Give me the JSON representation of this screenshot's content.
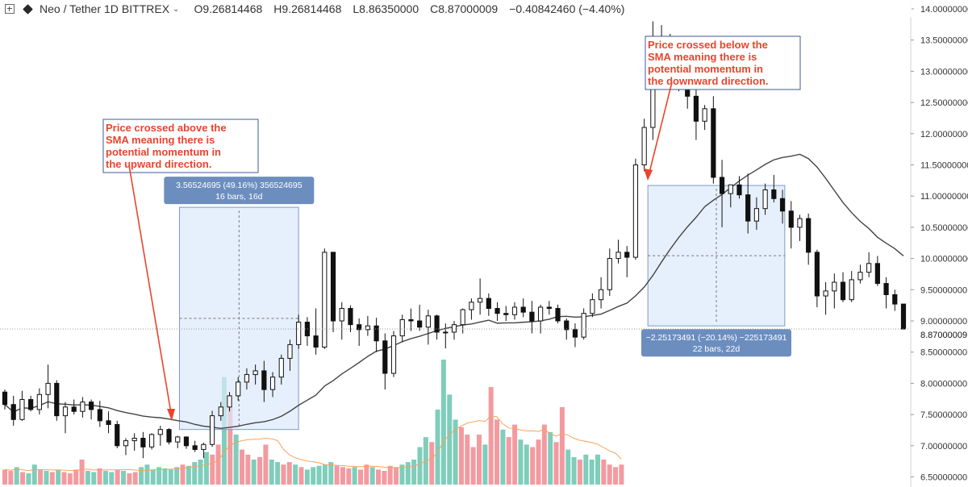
{
  "header": {
    "symbol": "Neo / Tether",
    "interval": "1D",
    "exchange": "BITTREX",
    "open": "O9.26814468",
    "high": "H9.26814468",
    "low": "L8.86350000",
    "close": "C8.87000009",
    "change": "−0.40842460 (−4.40%)"
  },
  "annotations": {
    "up_note": [
      "Price crossed above the",
      "SMA meaning there is",
      "potential momentum in",
      "the upward direction."
    ],
    "down_note": [
      "Price crossed below the",
      "SMA meaning there is",
      "potential momentum in",
      "the downward direction."
    ]
  },
  "measures": {
    "up": {
      "line1": "3.56524695 (49.16%) 356524695",
      "line2": "16 bars, 16d",
      "from": 7.26,
      "to": 10.82
    },
    "down": {
      "line1": "−2.25173491 (−20.14%) −225173491",
      "line2": "22 bars, 22d",
      "from": 11.17,
      "to": 8.92
    }
  },
  "price_label": "8.87000009",
  "colors": {
    "up": "#ffffff",
    "down": "#111111",
    "sma": "#444444",
    "vol_up": "#7fcdbb",
    "vol_down": "#f39aa0",
    "vol_ma": "#f7a35c",
    "measure_fill": "#dbeafb",
    "measure_stroke": "#2962ff",
    "note_text": "#e8452c",
    "note_border": "#3c5a99",
    "label_bg": "#6c8ebf"
  },
  "chart_data": {
    "type": "candlestick",
    "title": "",
    "ylim": [
      6.45,
      14.1
    ],
    "y_ticks": [
      "14.00000000",
      "13.50000000",
      "13.00000000",
      "12.50000000",
      "12.00000000",
      "11.50000000",
      "11.00000000",
      "10.50000000",
      "10.00000000",
      "9.50000000",
      "9.00000000",
      "8.50000000",
      "8.00000000",
      "7.50000000",
      "7.00000000",
      "6.50000000"
    ],
    "ohlc": [
      [
        7.86,
        7.9,
        7.58,
        7.66
      ],
      [
        7.66,
        7.8,
        7.32,
        7.42
      ],
      [
        7.42,
        7.88,
        7.4,
        7.74
      ],
      [
        7.74,
        7.8,
        7.55,
        7.58
      ],
      [
        7.58,
        7.92,
        7.5,
        7.82
      ],
      [
        7.82,
        8.3,
        7.6,
        8.0
      ],
      [
        8.0,
        8.05,
        7.4,
        7.48
      ],
      [
        7.48,
        7.7,
        7.2,
        7.62
      ],
      [
        7.62,
        7.74,
        7.5,
        7.55
      ],
      [
        7.55,
        7.78,
        7.45,
        7.7
      ],
      [
        7.7,
        7.74,
        7.42,
        7.58
      ],
      [
        7.58,
        7.72,
        7.3,
        7.4
      ],
      [
        7.4,
        7.55,
        7.2,
        7.34
      ],
      [
        7.34,
        7.4,
        6.96,
        7.0
      ],
      [
        7.0,
        7.12,
        6.85,
        7.08
      ],
      [
        7.08,
        7.2,
        6.92,
        7.12
      ],
      [
        7.12,
        7.22,
        6.8,
        6.98
      ],
      [
        6.98,
        7.2,
        6.94,
        7.18
      ],
      [
        7.18,
        7.32,
        7.0,
        7.26
      ],
      [
        7.26,
        7.28,
        7.02,
        7.06
      ],
      [
        7.06,
        7.16,
        6.96,
        7.14
      ],
      [
        7.14,
        7.15,
        6.95,
        7.0
      ],
      [
        7.0,
        7.08,
        6.9,
        6.94
      ],
      [
        6.94,
        7.05,
        6.8,
        7.02
      ],
      [
        7.02,
        7.56,
        6.98,
        7.48
      ],
      [
        7.48,
        7.7,
        7.4,
        7.62
      ],
      [
        7.62,
        7.86,
        7.55,
        7.8
      ],
      [
        7.8,
        8.1,
        7.72,
        8.02
      ],
      [
        8.02,
        8.24,
        7.9,
        8.14
      ],
      [
        8.14,
        8.3,
        7.98,
        8.2
      ],
      [
        8.2,
        8.36,
        7.7,
        7.9
      ],
      [
        7.9,
        8.18,
        7.78,
        8.1
      ],
      [
        8.1,
        8.46,
        7.98,
        8.4
      ],
      [
        8.4,
        8.7,
        8.2,
        8.62
      ],
      [
        8.62,
        9.1,
        8.55,
        8.98
      ],
      [
        8.98,
        9.06,
        8.6,
        8.76
      ],
      [
        8.76,
        9.2,
        8.46,
        8.58
      ],
      [
        8.58,
        10.16,
        8.55,
        10.1
      ],
      [
        10.1,
        10.1,
        8.82,
        9.0
      ],
      [
        9.0,
        9.3,
        8.7,
        9.2
      ],
      [
        9.2,
        9.25,
        8.82,
        8.94
      ],
      [
        8.94,
        9.04,
        8.6,
        8.86
      ],
      [
        8.86,
        9.08,
        8.76,
        8.92
      ],
      [
        8.92,
        9.05,
        8.5,
        8.68
      ],
      [
        8.68,
        8.8,
        7.9,
        8.16
      ],
      [
        8.16,
        8.84,
        8.1,
        8.76
      ],
      [
        8.76,
        9.1,
        8.66,
        9.02
      ],
      [
        9.02,
        9.2,
        8.84,
        9.0
      ],
      [
        9.0,
        9.26,
        8.84,
        8.9
      ],
      [
        8.9,
        9.18,
        8.62,
        9.08
      ],
      [
        9.08,
        9.1,
        8.7,
        8.82
      ],
      [
        8.82,
        8.96,
        8.56,
        8.82
      ],
      [
        8.82,
        9.0,
        8.7,
        8.94
      ],
      [
        8.94,
        9.2,
        8.8,
        9.18
      ],
      [
        9.18,
        9.36,
        9.02,
        9.3
      ],
      [
        9.3,
        9.68,
        9.1,
        9.36
      ],
      [
        9.36,
        9.44,
        9.08,
        9.2
      ],
      [
        9.2,
        9.3,
        9.0,
        9.12
      ],
      [
        9.12,
        9.24,
        9.0,
        9.1
      ],
      [
        9.1,
        9.3,
        9.02,
        9.22
      ],
      [
        9.22,
        9.36,
        9.06,
        9.14
      ],
      [
        9.14,
        9.32,
        8.8,
        9.0
      ],
      [
        9.0,
        9.26,
        8.8,
        9.22
      ],
      [
        9.22,
        9.32,
        9.1,
        9.2
      ],
      [
        9.2,
        9.26,
        8.96,
        9.0
      ],
      [
        9.0,
        9.04,
        8.7,
        8.86
      ],
      [
        8.86,
        8.96,
        8.58,
        8.74
      ],
      [
        8.74,
        9.2,
        8.7,
        9.12
      ],
      [
        9.12,
        9.44,
        9.06,
        9.34
      ],
      [
        9.34,
        9.7,
        9.2,
        9.5
      ],
      [
        9.5,
        10.16,
        9.4,
        10.0
      ],
      [
        10.0,
        10.3,
        9.92,
        10.1
      ],
      [
        10.1,
        10.2,
        9.7,
        10.02
      ],
      [
        10.02,
        11.6,
        9.98,
        11.5
      ],
      [
        11.5,
        12.24,
        11.4,
        12.1
      ],
      [
        12.1,
        13.8,
        11.9,
        13.1
      ],
      [
        13.1,
        13.74,
        12.9,
        13.5
      ],
      [
        13.5,
        13.6,
        12.8,
        13.2
      ],
      [
        13.2,
        13.42,
        12.68,
        12.9
      ],
      [
        12.9,
        12.96,
        12.4,
        12.6
      ],
      [
        12.6,
        12.8,
        11.9,
        12.2
      ],
      [
        12.2,
        12.46,
        12.06,
        12.4
      ],
      [
        12.4,
        12.6,
        11.2,
        11.3
      ],
      [
        11.3,
        11.58,
        10.5,
        11.04
      ],
      [
        11.04,
        11.16,
        10.82,
        11.18
      ],
      [
        11.18,
        11.32,
        10.96,
        11.02
      ],
      [
        11.02,
        11.36,
        10.4,
        10.6
      ],
      [
        10.6,
        10.98,
        10.46,
        10.8
      ],
      [
        10.8,
        11.2,
        10.7,
        11.1
      ],
      [
        11.1,
        11.34,
        10.9,
        10.96
      ],
      [
        10.96,
        11.1,
        10.56,
        10.76
      ],
      [
        10.76,
        10.92,
        10.16,
        10.5
      ],
      [
        10.5,
        10.7,
        10.28,
        10.64
      ],
      [
        10.64,
        10.72,
        9.9,
        10.1
      ],
      [
        10.1,
        10.14,
        9.22,
        9.4
      ],
      [
        9.4,
        9.62,
        9.1,
        9.48
      ],
      [
        9.48,
        9.76,
        9.2,
        9.62
      ],
      [
        9.62,
        9.78,
        9.3,
        9.34
      ],
      [
        9.34,
        9.8,
        9.3,
        9.66
      ],
      [
        9.66,
        9.9,
        9.6,
        9.78
      ],
      [
        9.78,
        10.1,
        9.7,
        9.92
      ],
      [
        9.92,
        10.04,
        9.56,
        9.6
      ],
      [
        9.6,
        9.7,
        9.2,
        9.42
      ],
      [
        9.42,
        9.5,
        9.16,
        9.27
      ],
      [
        9.27,
        9.27,
        8.86,
        8.87
      ]
    ],
    "volume_scale_note": "relative volume (no axis printed)",
    "volume": [
      0.6,
      0.55,
      0.7,
      0.5,
      0.45,
      0.8,
      0.6,
      0.55,
      0.5,
      0.6,
      0.5,
      0.45,
      0.6,
      1.0,
      0.55,
      0.5,
      0.65,
      0.55,
      0.5,
      0.6,
      0.55,
      0.45,
      0.5,
      0.7,
      0.8,
      0.6,
      0.7,
      0.65,
      0.6,
      0.7,
      0.8,
      0.75,
      0.9,
      1.0,
      1.3,
      1.2,
      1.6,
      4.3,
      3.1,
      2.0,
      1.4,
      1.2,
      1.0,
      1.1,
      1.6,
      1.0,
      0.9,
      0.8,
      0.9,
      0.8,
      0.7,
      0.6,
      0.7,
      0.75,
      0.8,
      0.9,
      0.75,
      0.7,
      0.65,
      0.7,
      0.6,
      0.8,
      0.7,
      0.6,
      0.55,
      0.75,
      0.7,
      0.8,
      0.9,
      1.0,
      1.5,
      1.9,
      1.7,
      3.0,
      5.0,
      3.6,
      2.6,
      2.3,
      2.0,
      1.5,
      2.0,
      1.6,
      3.9,
      2.6,
      2.2,
      1.9,
      2.4,
      1.8,
      1.6,
      1.5,
      1.8,
      2.4,
      2.1,
      1.7,
      3.1,
      1.4,
      1.1,
      1.0,
      1.2,
      1.0,
      1.2,
      1.0,
      0.8,
      0.7,
      0.8
    ],
    "sma_period": 20,
    "series": []
  }
}
